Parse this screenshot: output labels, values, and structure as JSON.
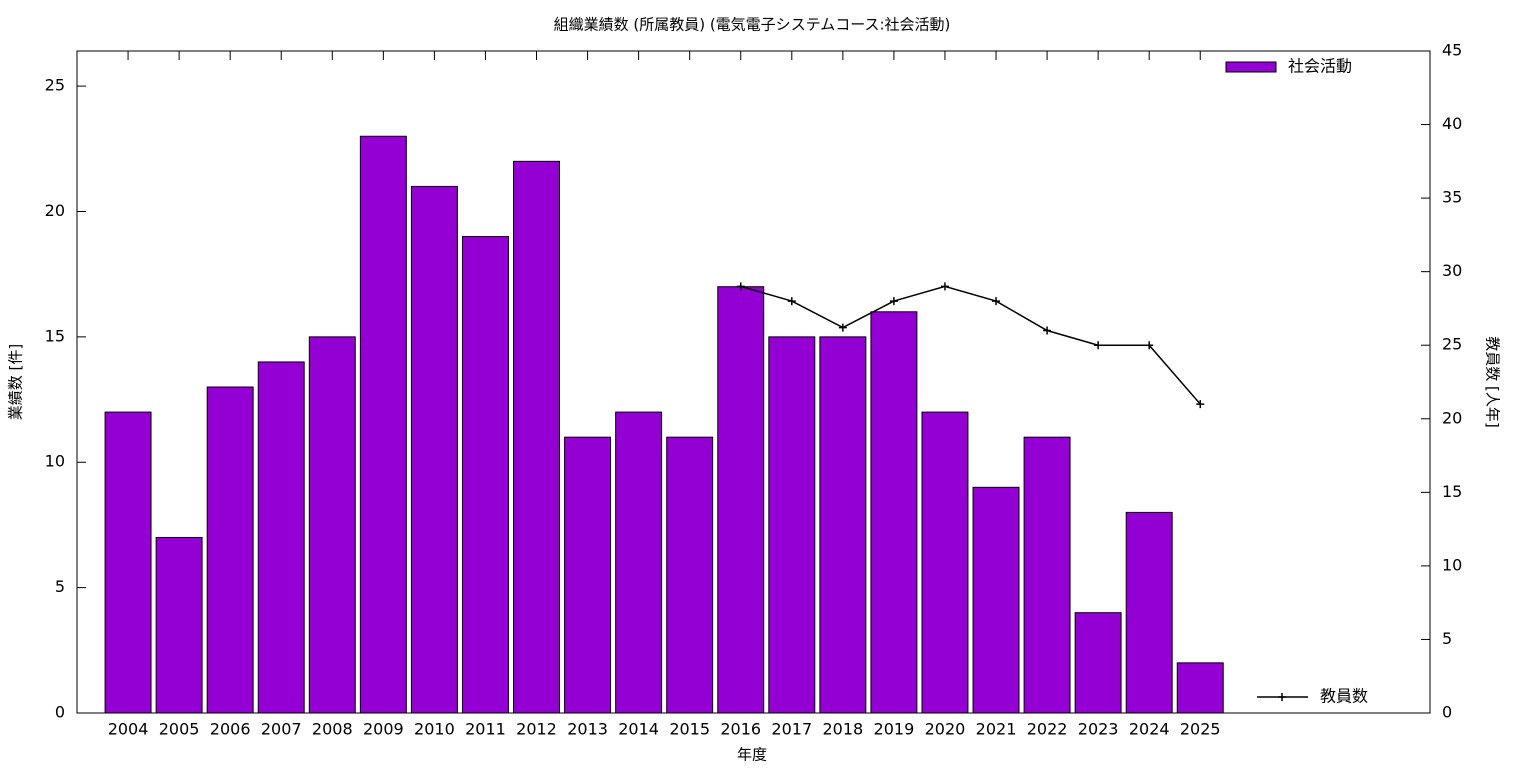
{
  "chart_data": {
    "type": "bar",
    "title": "組織業績数 (所属教員) (電気電子システムコース:社会活動)",
    "x_label": "年度",
    "y_label": "業績数 [件]",
    "y2_label": "教員数 [人年]",
    "categories": [
      "2004",
      "2005",
      "2006",
      "2007",
      "2008",
      "2009",
      "2010",
      "2011",
      "2012",
      "2013",
      "2014",
      "2015",
      "2016",
      "2017",
      "2018",
      "2019",
      "2020",
      "2021",
      "2022",
      "2023",
      "2024",
      "2025"
    ],
    "series": [
      {
        "name": "社会活動",
        "type": "bar",
        "color": "#9400d3",
        "values": [
          12,
          7,
          13,
          14,
          15,
          23,
          21,
          19,
          22,
          11,
          12,
          11,
          17,
          15,
          15,
          16,
          12,
          9,
          11,
          4,
          8,
          2
        ]
      },
      {
        "name": "教員数",
        "type": "line",
        "axis": "y2",
        "color": "#000000",
        "values": [
          null,
          null,
          null,
          null,
          null,
          null,
          null,
          null,
          null,
          null,
          null,
          null,
          29,
          28,
          26.2,
          28,
          29,
          28,
          26,
          25,
          25,
          21
        ]
      }
    ],
    "ylim": [
      0,
      26.4
    ],
    "yticks": [
      0,
      5,
      10,
      15,
      20,
      25
    ],
    "y2lim": [
      0,
      45
    ],
    "y2ticks": [
      0,
      5,
      10,
      15,
      20,
      25,
      30,
      35,
      40,
      45
    ]
  }
}
